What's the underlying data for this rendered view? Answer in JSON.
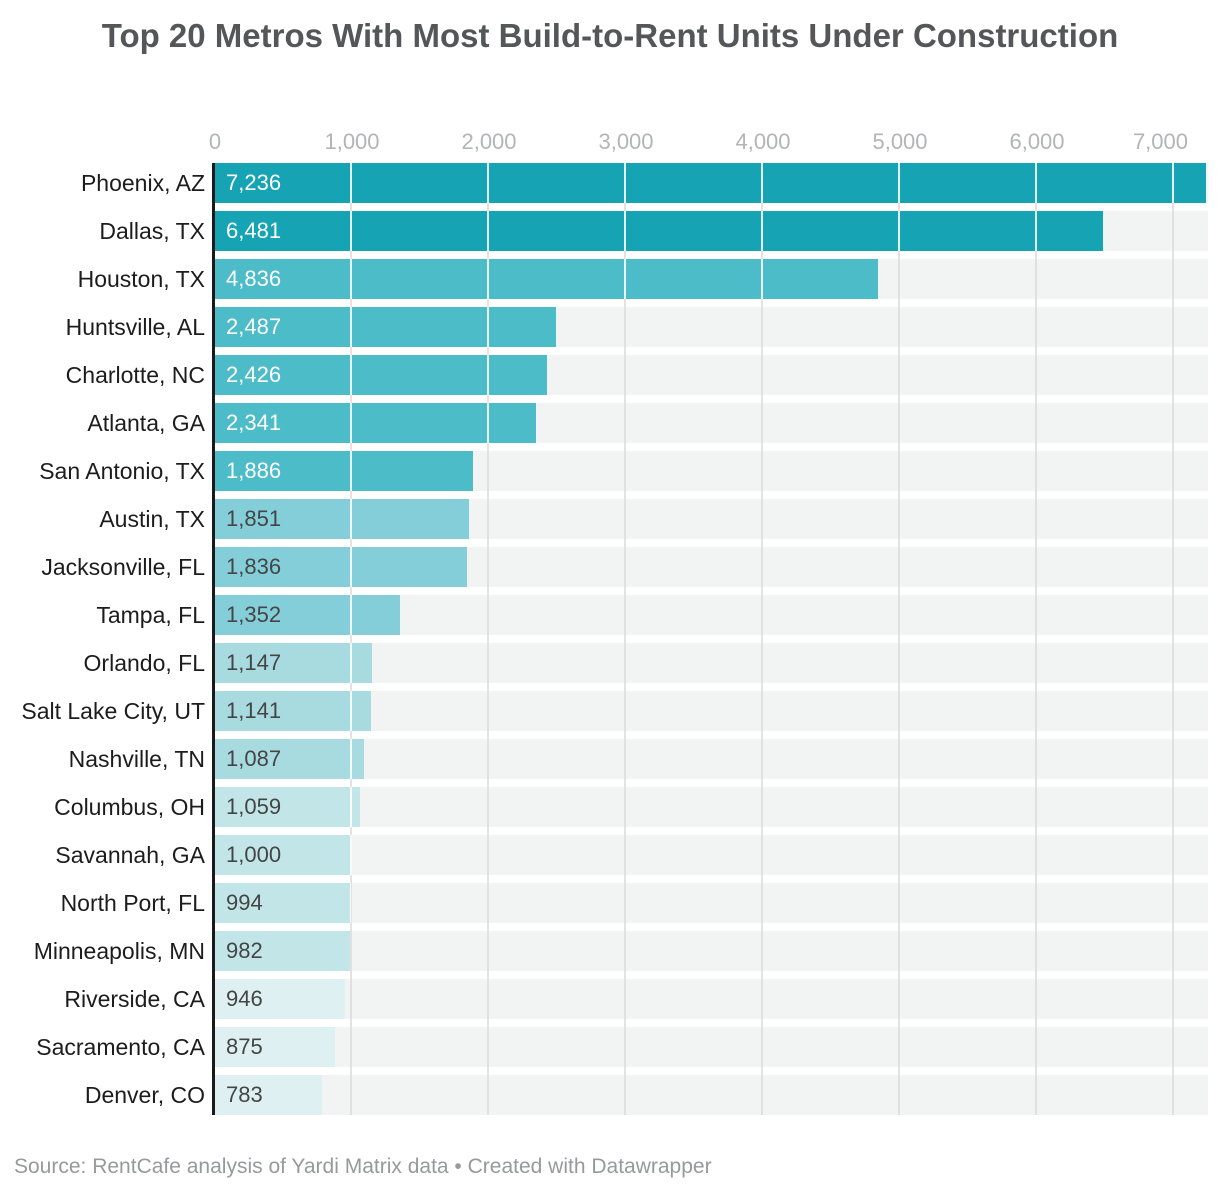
{
  "title": "Top 20 Metros With Most Build-to-Rent Units Under Construction",
  "footer": "Source: RentCafe analysis of Yardi Matrix data • Created with Datawrapper",
  "chart_data": {
    "type": "bar",
    "orientation": "horizontal",
    "title": "Top 20 Metros With Most Build-to-Rent Units Under Construction",
    "source": "Source: RentCafe analysis of Yardi Matrix data • Created with Datawrapper",
    "categories": [
      "Phoenix, AZ",
      "Dallas, TX",
      "Houston, TX",
      "Huntsville, AL",
      "Charlotte, NC",
      "Atlanta, GA",
      "San Antonio, TX",
      "Austin, TX",
      "Jacksonville, FL",
      "Tampa, FL",
      "Orlando, FL",
      "Salt Lake City, UT",
      "Nashville, TN",
      "Columbus, OH",
      "Savannah, GA",
      "North Port, FL",
      "Minneapolis, MN",
      "Riverside, CA",
      "Sacramento, CA",
      "Denver, CO"
    ],
    "values": [
      7236,
      6481,
      4836,
      2487,
      2426,
      2341,
      1886,
      1851,
      1836,
      1352,
      1147,
      1141,
      1087,
      1059,
      1000,
      994,
      982,
      946,
      875,
      783
    ],
    "value_labels": [
      "7,236",
      "6,481",
      "4,836",
      "2,487",
      "2,426",
      "2,341",
      "1,886",
      "1,851",
      "1,836",
      "1,352",
      "1,147",
      "1,141",
      "1,087",
      "1,059",
      "1,000",
      "994",
      "982",
      "946",
      "875",
      "783"
    ],
    "bar_colors": [
      "#16a3b3",
      "#16a3b3",
      "#4cbcc9",
      "#4cbcc9",
      "#4cbcc9",
      "#4cbcc9",
      "#4cbcc9",
      "#83ced8",
      "#83ced8",
      "#83ced8",
      "#a7dbe0",
      "#a7dbe0",
      "#a7dbe0",
      "#c2e6e8",
      "#c2e6e8",
      "#c2e6e8",
      "#c2e6e8",
      "#def0f2",
      "#def0f2",
      "#def0f2"
    ],
    "value_label_colors": [
      "#ffffff",
      "#ffffff",
      "#ffffff",
      "#ffffff",
      "#ffffff",
      "#ffffff",
      "#ffffff",
      "#454545",
      "#454545",
      "#454545",
      "#454545",
      "#454545",
      "#454545",
      "#454545",
      "#454545",
      "#454545",
      "#454545",
      "#454545",
      "#454545",
      "#454545"
    ],
    "x_ticks": [
      "0",
      "1,000",
      "2,000",
      "3,000",
      "4,000",
      "5,000",
      "6,000",
      "7,000"
    ],
    "x_tick_values": [
      0,
      1000,
      2000,
      3000,
      4000,
      5000,
      6000,
      7000
    ],
    "xlim": [
      0,
      7250
    ],
    "grid": true,
    "legend": "none"
  },
  "colors": {
    "axis_line": "#1a1a1a",
    "row_background": "#f2f3f3",
    "gridline": "#e0e0e0",
    "tick_label": "#b2b4b6",
    "category_label": "#1c1c1c",
    "title": "#555659",
    "footer": "#97999a"
  }
}
